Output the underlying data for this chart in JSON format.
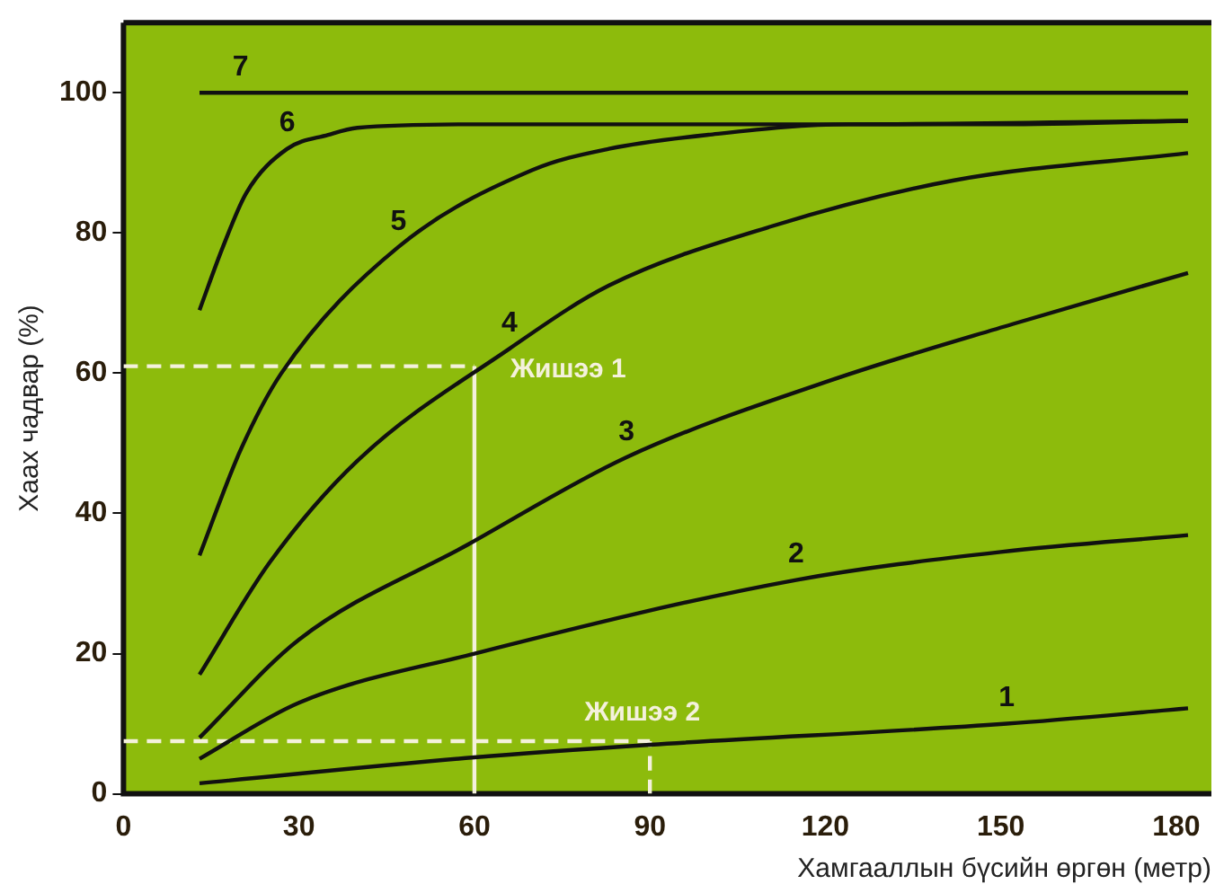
{
  "chart_data": {
    "type": "line",
    "xlabel": "Хамгааллын бүсийн өргөн (метр)",
    "ylabel": "Хаах чадвар (%)",
    "xlim": [
      0,
      186
    ],
    "xticks": [
      0,
      30,
      60,
      90,
      120,
      150,
      180
    ],
    "ylim": [
      0,
      110
    ],
    "yticks": [
      0,
      20,
      40,
      60,
      80,
      100
    ],
    "grid": false,
    "legend": false,
    "marker": "none",
    "line_style": "solid",
    "series": [
      {
        "name": "1",
        "color": "#111111",
        "x": [
          13,
          60,
          90,
          151,
          182
        ],
        "values": [
          1.5,
          5.2,
          7,
          10,
          12.2
        ]
      },
      {
        "name": "2",
        "color": "#111111",
        "x": [
          13,
          30,
          60,
          115,
          150,
          182
        ],
        "values": [
          5,
          13,
          20,
          30.5,
          34.5,
          36.9
        ]
      },
      {
        "name": "3",
        "color": "#111111",
        "x": [
          13,
          30,
          59,
          86,
          121,
          152,
          182
        ],
        "values": [
          8,
          22,
          35.6,
          48,
          59,
          67,
          74.3
        ]
      },
      {
        "name": "4",
        "color": "#111111",
        "x": [
          13,
          25,
          40,
          66,
          83,
          111,
          142,
          182
        ],
        "values": [
          17,
          33,
          47.5,
          63.5,
          72.5,
          81,
          87.5,
          91.4
        ]
      },
      {
        "name": "5",
        "color": "#111111",
        "x": [
          13,
          20,
          27,
          47,
          70,
          83,
          100,
          124,
          150,
          182
        ],
        "values": [
          34,
          49,
          60,
          78,
          89,
          92,
          94,
          95.5,
          95.5,
          96
        ]
      },
      {
        "name": "6",
        "color": "#111111",
        "x": [
          13,
          17,
          21,
          28,
          35,
          40,
          60,
          100,
          124,
          182
        ],
        "values": [
          69,
          78,
          85.7,
          92,
          94,
          95,
          95.5,
          95.5,
          95.5,
          96
        ]
      },
      {
        "color": "#f4f1dc",
        "line_style": "dashed",
        "x": [
          0,
          60
        ],
        "values": [
          61,
          61
        ]
      },
      {
        "color": "#f4f1dc",
        "line_style": "solid",
        "x": [
          60,
          60
        ],
        "values": [
          0,
          61
        ]
      },
      {
        "color": "#f4f1dc",
        "line_style": "dashed",
        "x": [
          0,
          90
        ],
        "values": [
          7.5,
          7.5
        ]
      },
      {
        "color": "#f4f1dc",
        "line_style": "dashed",
        "x": [
          90,
          90
        ],
        "values": [
          0,
          7.5
        ]
      },
      {
        "name": "7",
        "color": "#111111",
        "x": [
          13,
          15,
          18,
          20,
          182
        ],
        "values": [
          100,
          100,
          100,
          100,
          100
        ]
      }
    ],
    "annotations": [
      {
        "text": "Жишээ 1",
        "x": 60,
        "y": 61
      },
      {
        "text": "Жишээ 2",
        "x": 90,
        "y": 7.5
      }
    ]
  }
}
